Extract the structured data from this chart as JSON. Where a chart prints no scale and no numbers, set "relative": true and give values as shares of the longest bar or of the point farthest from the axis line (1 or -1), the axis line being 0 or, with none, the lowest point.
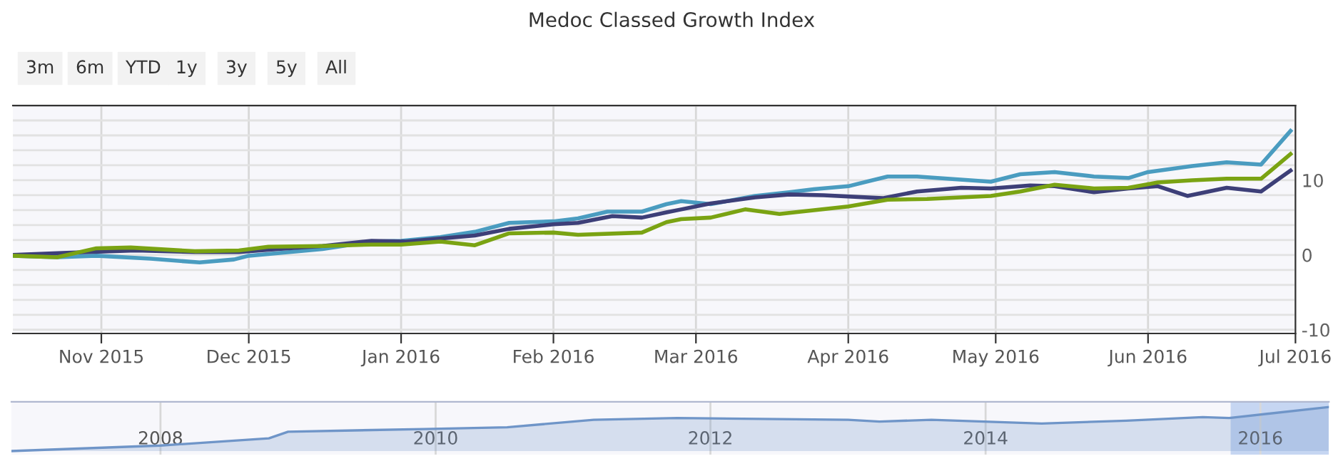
{
  "chart_data": [
    {
      "type": "line",
      "title": "Medoc Classed Growth Index",
      "annotations": [
        "3m",
        "6m",
        "YTD",
        "1y",
        "3y",
        "5y",
        "All"
      ],
      "xlim": [
        "2015-10-14",
        "2016-07-01"
      ],
      "xticks": [
        {
          "value": "2015-11-01",
          "label": "Nov 2015"
        },
        {
          "value": "2015-12-01",
          "label": "Dec 2015"
        },
        {
          "value": "2016-01-01",
          "label": "Jan 2016"
        },
        {
          "value": "2016-02-01",
          "label": "Feb 2016"
        },
        {
          "value": "2016-03-01",
          "label": "Mar 2016"
        },
        {
          "value": "2016-04-01",
          "label": "Apr 2016"
        },
        {
          "value": "2016-05-01",
          "label": "May 2016"
        },
        {
          "value": "2016-06-01",
          "label": "Jun 2016"
        },
        {
          "value": "2016-07-01",
          "label": "Jul 2016"
        }
      ],
      "ylim": [
        -10.5,
        20
      ],
      "yticks": [
        -10,
        {
          "value": -8,
          "label": null
        },
        {
          "value": -6,
          "label": null
        },
        {
          "value": -4,
          "label": null
        },
        {
          "value": -2,
          "label": null
        },
        0,
        {
          "value": 2,
          "label": null
        },
        {
          "value": 4,
          "label": null
        },
        {
          "value": 6,
          "label": null
        },
        {
          "value": 8,
          "label": null
        },
        10,
        {
          "value": 12,
          "label": null
        },
        {
          "value": 14,
          "label": null
        },
        {
          "value": 16,
          "label": null
        },
        {
          "value": 18,
          "label": null
        },
        {
          "value": 20,
          "label": null
        }
      ],
      "grid": true,
      "legend": false,
      "marker": "none",
      "line_style": "solid",
      "series": [
        {
          "color": "#4a9cc0",
          "x": [
            "2015-10-14",
            "2015-10-23",
            "2015-10-31",
            "2015-11-11",
            "2015-11-21",
            "2015-11-28",
            "2015-12-01",
            "2015-12-16",
            "2015-12-26",
            "2016-01-01",
            "2016-01-09",
            "2016-01-16",
            "2016-01-23",
            "2016-02-01",
            "2016-02-06",
            "2016-02-12",
            "2016-02-19",
            "2016-02-24",
            "2016-02-27",
            "2016-03-04",
            "2016-03-13",
            "2016-03-20",
            "2016-03-25",
            "2016-04-01",
            "2016-04-09",
            "2016-04-15",
            "2016-04-30",
            "2016-05-06",
            "2016-05-13",
            "2016-05-21",
            "2016-05-28",
            "2016-06-01",
            "2016-06-10",
            "2016-06-17",
            "2016-06-24",
            "2016-06-30"
          ],
          "values": [
            -0.1,
            -0.3,
            -0.1,
            -0.5,
            -1.0,
            -0.6,
            -0.1,
            0.8,
            1.8,
            1.9,
            2.4,
            3.1,
            4.3,
            4.5,
            4.9,
            5.8,
            5.8,
            6.8,
            7.2,
            6.8,
            7.9,
            8.4,
            8.8,
            9.2,
            10.5,
            10.5,
            9.8,
            10.8,
            11.1,
            10.5,
            10.3,
            11.1,
            11.9,
            12.4,
            12.1,
            16.6
          ]
        },
        {
          "color": "#3d3f78",
          "x": [
            "2015-10-14",
            "2015-10-25",
            "2015-11-08",
            "2015-11-20",
            "2015-11-29",
            "2015-12-07",
            "2015-12-16",
            "2015-12-26",
            "2016-01-02",
            "2016-01-09",
            "2016-01-16",
            "2016-01-23",
            "2016-02-01",
            "2016-02-06",
            "2016-02-13",
            "2016-02-19",
            "2016-02-24",
            "2016-02-27",
            "2016-03-04",
            "2016-03-13",
            "2016-03-20",
            "2016-03-27",
            "2016-04-08",
            "2016-04-15",
            "2016-04-24",
            "2016-04-30",
            "2016-05-08",
            "2016-05-13",
            "2016-05-21",
            "2016-05-28",
            "2016-06-03",
            "2016-06-09",
            "2016-06-17",
            "2016-06-24",
            "2016-06-30"
          ],
          "values": [
            0.0,
            0.3,
            0.6,
            0.4,
            0.4,
            0.8,
            1.2,
            1.9,
            1.8,
            2.2,
            2.6,
            3.5,
            4.1,
            4.3,
            5.2,
            5.0,
            5.7,
            6.1,
            6.9,
            7.7,
            8.1,
            8.0,
            7.6,
            8.5,
            9.0,
            8.9,
            9.3,
            9.2,
            8.4,
            8.9,
            9.2,
            7.9,
            9.0,
            8.5,
            11.3
          ]
        },
        {
          "color": "#7aa313",
          "x": [
            "2015-10-14",
            "2015-10-23",
            "2015-10-31",
            "2015-11-07",
            "2015-11-20",
            "2015-11-29",
            "2015-12-05",
            "2015-12-16",
            "2015-12-26",
            "2016-01-01",
            "2016-01-09",
            "2016-01-16",
            "2016-01-23",
            "2016-02-01",
            "2016-02-06",
            "2016-02-19",
            "2016-02-24",
            "2016-02-27",
            "2016-03-04",
            "2016-03-11",
            "2016-03-18",
            "2016-03-25",
            "2016-04-01",
            "2016-04-09",
            "2016-04-17",
            "2016-04-30",
            "2016-05-06",
            "2016-05-13",
            "2016-05-21",
            "2016-05-28",
            "2016-06-03",
            "2016-06-10",
            "2016-06-17",
            "2016-06-24",
            "2016-06-30"
          ],
          "values": [
            -0.1,
            -0.3,
            0.9,
            1.0,
            0.5,
            0.6,
            1.1,
            1.2,
            1.4,
            1.4,
            1.8,
            1.3,
            2.9,
            3.0,
            2.7,
            3.0,
            4.4,
            4.8,
            5.0,
            6.1,
            5.5,
            6.0,
            6.5,
            7.4,
            7.5,
            7.9,
            8.5,
            9.4,
            8.9,
            9.0,
            9.7,
            10.0,
            10.2,
            10.2,
            13.5
          ]
        }
      ]
    },
    {
      "type": "area",
      "relative": true,
      "xlim": [
        "2006-12-01",
        "2016-07-01"
      ],
      "xticks": [
        {
          "value": "2008-01-01",
          "label": "2008"
        },
        {
          "value": "2010-01-01",
          "label": "2010"
        },
        {
          "value": "2012-01-01",
          "label": "2012"
        },
        {
          "value": "2014-01-01",
          "label": "2014"
        },
        {
          "value": "2016-01-01",
          "label": "2016"
        }
      ],
      "tick_labels": "x",
      "grid": "x",
      "bands": [
        {
          "axis": "x",
          "from": "2015-10-14",
          "to": "2016-07-01",
          "color": "#b9cdf0"
        }
      ],
      "series": [
        {
          "color": "#6f95c8",
          "x": [
            "2006-12-01",
            "2008-01-01",
            "2008-10-15",
            "2008-12-05",
            "2009-12-01",
            "2010-07-10",
            "2011-02-25",
            "2011-10-05",
            "2013-01-01",
            "2013-03-25",
            "2013-08-10",
            "2014-05-30",
            "2015-01-10",
            "2015-08-01",
            "2015-10-10",
            "2016-06-30"
          ],
          "values": [
            0,
            0.125,
            0.29,
            0.44,
            0.5,
            0.54,
            0.71,
            0.75,
            0.71,
            0.67,
            0.71,
            0.625,
            0.69,
            0.77,
            0.75,
            1
          ]
        }
      ]
    }
  ]
}
